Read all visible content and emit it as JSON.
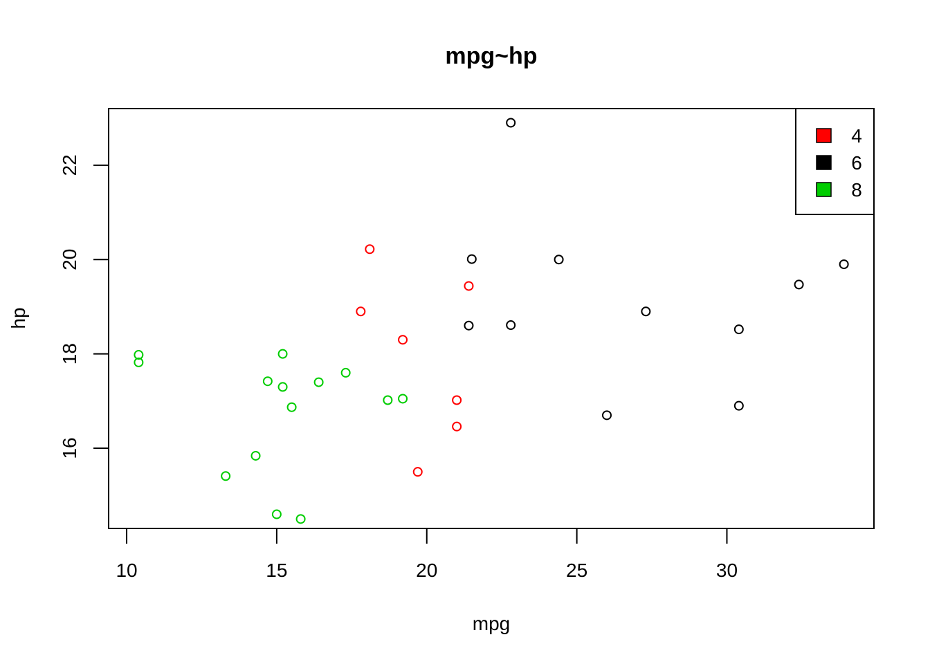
{
  "chart_data": {
    "type": "scatter",
    "title": "mpg~hp",
    "xlabel": "mpg",
    "ylabel": "hp",
    "xlim": [
      9.4,
      34.9
    ],
    "ylim": [
      14.3,
      23.2
    ],
    "xticks": [
      "10",
      "15",
      "20",
      "25",
      "30"
    ],
    "yticks": [
      "16",
      "18",
      "20",
      "22"
    ],
    "legend": {
      "position": "top-right",
      "entries": [
        {
          "label": "4",
          "color": "#ff0000"
        },
        {
          "label": "6",
          "color": "#000000"
        },
        {
          "label": "8",
          "color": "#00cd00"
        }
      ]
    },
    "series": [
      {
        "name": "4",
        "color": "#ff0000",
        "points": [
          [
            21.0,
            16.46
          ],
          [
            21.0,
            17.02
          ],
          [
            21.4,
            19.44
          ],
          [
            18.1,
            20.22
          ],
          [
            19.2,
            18.3
          ],
          [
            17.8,
            18.9
          ],
          [
            19.7,
            15.5
          ]
        ]
      },
      {
        "name": "6",
        "color": "#000000",
        "points": [
          [
            22.8,
            18.61
          ],
          [
            24.4,
            20.0
          ],
          [
            22.8,
            22.9
          ],
          [
            32.4,
            19.47
          ],
          [
            30.4,
            18.52
          ],
          [
            33.9,
            19.9
          ],
          [
            21.5,
            20.01
          ],
          [
            27.3,
            18.9
          ],
          [
            26.0,
            16.7
          ],
          [
            30.4,
            16.9
          ],
          [
            21.4,
            18.6
          ]
        ]
      },
      {
        "name": "8",
        "color": "#00cd00",
        "points": [
          [
            18.7,
            17.02
          ],
          [
            14.3,
            15.84
          ],
          [
            16.4,
            17.4
          ],
          [
            17.3,
            17.6
          ],
          [
            15.2,
            18.0
          ],
          [
            10.4,
            17.98
          ],
          [
            10.4,
            17.82
          ],
          [
            14.7,
            17.42
          ],
          [
            15.5,
            16.87
          ],
          [
            15.2,
            17.3
          ],
          [
            13.3,
            15.41
          ],
          [
            19.2,
            17.05
          ],
          [
            15.8,
            14.5
          ],
          [
            15.0,
            14.6
          ]
        ]
      }
    ]
  }
}
